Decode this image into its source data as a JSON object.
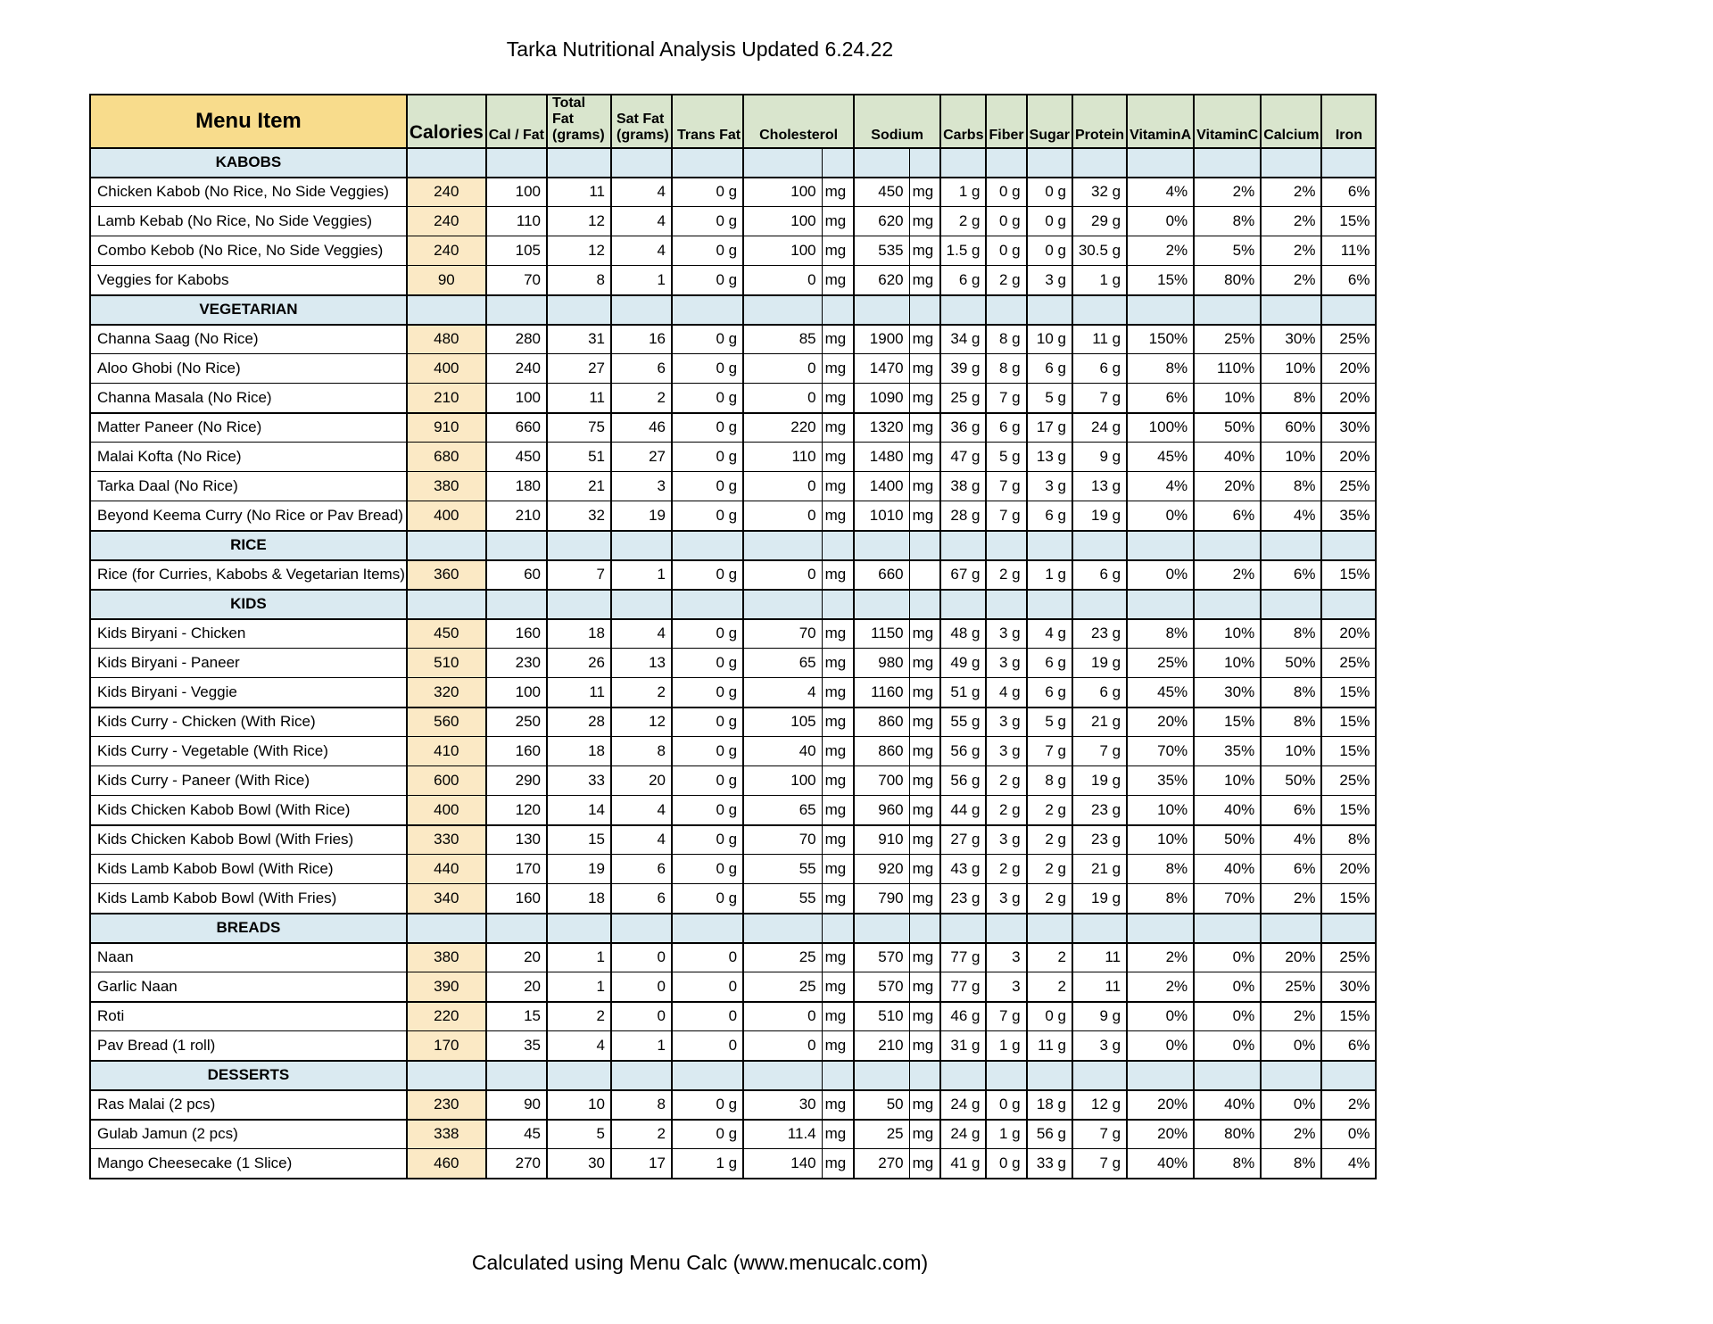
{
  "title": "Tarka Nutritional Analysis Updated 6.24.22",
  "footer": "Calculated using Menu Calc (www.menucalc.com)",
  "colors": {
    "menu_header_yellow": "#f8dc8c",
    "column_header_green": "#d9e5cd",
    "section_row_blue": "#daeaf1",
    "calories_column_tan": "#fbe9c5",
    "grid_border": "#000000"
  },
  "table": {
    "headers": {
      "menu_item": "Menu Item",
      "calories": "Calories",
      "cal_fat": "Cal / Fat",
      "total_fat": "Total Fat\n(grams)",
      "sat_fat": "Sat Fat\n(grams)",
      "trans_fat": "Trans Fat",
      "cholesterol": "Cholesterol",
      "sodium": "Sodium",
      "carbs": "Carbs",
      "fiber": "Fiber",
      "sugar": "Sugar",
      "protein": "Protein",
      "vitamin_a": "VitaminA",
      "vitamin_c": "VitaminC",
      "calcium": "Calcium",
      "iron": "Iron"
    },
    "sections": [
      {
        "name": "KABOBS",
        "rows": [
          {
            "item": "Chicken Kabob (No Rice, No Side Veggies)",
            "calories": "240",
            "cal_fat": "100",
            "total_fat": "11",
            "sat_fat": "4",
            "trans_fat": "0 g",
            "chol": "100",
            "chol_unit": "mg",
            "sodium": "450",
            "sodium_unit": "mg",
            "carbs": "1 g",
            "fiber": "0 g",
            "sugar": "0 g",
            "protein": "32 g",
            "vit_a": "4%",
            "vit_c": "2%",
            "calcium": "2%",
            "iron": "6%"
          },
          {
            "item": "Lamb Kebab  (No Rice, No Side Veggies)",
            "calories": "240",
            "cal_fat": "110",
            "total_fat": "12",
            "sat_fat": "4",
            "trans_fat": "0 g",
            "chol": "100",
            "chol_unit": "mg",
            "sodium": "620",
            "sodium_unit": "mg",
            "carbs": "2 g",
            "fiber": "0 g",
            "sugar": "0 g",
            "protein": "29 g",
            "vit_a": "0%",
            "vit_c": "8%",
            "calcium": "2%",
            "iron": "15%"
          },
          {
            "item": "Combo Kebob (No Rice, No Side Veggies)",
            "calories": "240",
            "cal_fat": "105",
            "total_fat": "12",
            "sat_fat": "4",
            "trans_fat": "0 g",
            "chol": "100",
            "chol_unit": "mg",
            "sodium": "535",
            "sodium_unit": "mg",
            "carbs": "1.5 g",
            "fiber": "0 g",
            "sugar": "0 g",
            "protein": "30.5 g",
            "vit_a": "2%",
            "vit_c": "5%",
            "calcium": "2%",
            "iron": "11%"
          },
          {
            "item": "Veggies for Kabobs",
            "calories": "90",
            "cal_fat": "70",
            "total_fat": "8",
            "sat_fat": "1",
            "trans_fat": "0 g",
            "chol": "0",
            "chol_unit": "mg",
            "sodium": "620",
            "sodium_unit": "mg",
            "carbs": "6 g",
            "fiber": "2 g",
            "sugar": "3 g",
            "protein": "1 g",
            "vit_a": "15%",
            "vit_c": "80%",
            "calcium": "2%",
            "iron": "6%"
          }
        ]
      },
      {
        "name": "VEGETARIAN",
        "rows": [
          {
            "item": "Channa Saag (No Rice)",
            "calories": "480",
            "cal_fat": "280",
            "total_fat": "31",
            "sat_fat": "16",
            "trans_fat": "0 g",
            "chol": "85",
            "chol_unit": "mg",
            "sodium": "1900",
            "sodium_unit": "mg",
            "carbs": "34 g",
            "fiber": "8 g",
            "sugar": "10 g",
            "protein": "11 g",
            "vit_a": "150%",
            "vit_c": "25%",
            "calcium": "30%",
            "iron": "25%"
          },
          {
            "item": "Aloo Ghobi (No Rice)",
            "calories": "400",
            "cal_fat": "240",
            "total_fat": "27",
            "sat_fat": "6",
            "trans_fat": "0 g",
            "chol": "0",
            "chol_unit": "mg",
            "sodium": "1470",
            "sodium_unit": "mg",
            "carbs": "39 g",
            "fiber": "8 g",
            "sugar": "6 g",
            "protein": "6 g",
            "vit_a": "8%",
            "vit_c": "110%",
            "calcium": "10%",
            "iron": "20%"
          },
          {
            "item": "Channa Masala (No Rice)",
            "calories": "210",
            "cal_fat": "100",
            "total_fat": "11",
            "sat_fat": "2",
            "trans_fat": "0 g",
            "chol": "0",
            "chol_unit": "mg",
            "sodium": "1090",
            "sodium_unit": "mg",
            "carbs": "25 g",
            "fiber": "7 g",
            "sugar": "5 g",
            "protein": "7 g",
            "vit_a": "6%",
            "vit_c": "10%",
            "calcium": "8%",
            "iron": "20%"
          },
          {
            "item": "Matter Paneer (No Rice)",
            "thick_top": true,
            "calories": "910",
            "cal_fat": "660",
            "total_fat": "75",
            "sat_fat": "46",
            "trans_fat": "0 g",
            "chol": "220",
            "chol_unit": "mg",
            "sodium": "1320",
            "sodium_unit": "mg",
            "carbs": "36 g",
            "fiber": "6 g",
            "sugar": "17 g",
            "protein": "24 g",
            "vit_a": "100%",
            "vit_c": "50%",
            "calcium": "60%",
            "iron": "30%"
          },
          {
            "item": "Malai Kofta (No Rice)",
            "calories": "680",
            "cal_fat": "450",
            "total_fat": "51",
            "sat_fat": "27",
            "trans_fat": "0 g",
            "chol": "110",
            "chol_unit": "mg",
            "sodium": "1480",
            "sodium_unit": "mg",
            "carbs": "47 g",
            "fiber": "5 g",
            "sugar": "13 g",
            "protein": "9 g",
            "vit_a": "45%",
            "vit_c": "40%",
            "calcium": "10%",
            "iron": "20%"
          },
          {
            "item": "Tarka Daal (No Rice)",
            "calories": "380",
            "cal_fat": "180",
            "total_fat": "21",
            "sat_fat": "3",
            "trans_fat": "0 g",
            "chol": "0",
            "chol_unit": "mg",
            "sodium": "1400",
            "sodium_unit": "mg",
            "carbs": "38 g",
            "fiber": "7 g",
            "sugar": "3 g",
            "protein": "13 g",
            "vit_a": "4%",
            "vit_c": "20%",
            "calcium": "8%",
            "iron": "25%"
          },
          {
            "item": "Beyond Keema Curry (No Rice or Pav Bread)",
            "calories": "400",
            "cal_fat": "210",
            "total_fat": "32",
            "sat_fat": "19",
            "trans_fat": "0 g",
            "chol": "0",
            "chol_unit": "mg",
            "sodium": "1010",
            "sodium_unit": "mg",
            "carbs": "28 g",
            "fiber": "7 g",
            "sugar": "6 g",
            "protein": "19 g",
            "vit_a": "0%",
            "vit_c": "6%",
            "calcium": "4%",
            "iron": "35%"
          }
        ]
      },
      {
        "name": "RICE",
        "rows": [
          {
            "item": "Rice (for Curries, Kabobs & Vegetarian Items)",
            "calories": "360",
            "cal_fat": "60",
            "total_fat": "7",
            "sat_fat": "1",
            "trans_fat": "0 g",
            "chol": "0",
            "chol_unit": "mg",
            "sodium": "660",
            "sodium_unit": "",
            "carbs": "67 g",
            "fiber": "2 g",
            "sugar": "1 g",
            "protein": "6 g",
            "vit_a": "0%",
            "vit_c": "2%",
            "calcium": "6%",
            "iron": "15%"
          }
        ]
      },
      {
        "name": "KIDS",
        "rows": [
          {
            "item": "Kids Biryani - Chicken",
            "calories": "450",
            "cal_fat": "160",
            "total_fat": "18",
            "sat_fat": "4",
            "trans_fat": "0 g",
            "chol": "70",
            "chol_unit": "mg",
            "sodium": "1150",
            "sodium_unit": "mg",
            "carbs": "48 g",
            "fiber": "3 g",
            "sugar": "4 g",
            "protein": "23 g",
            "vit_a": "8%",
            "vit_c": "10%",
            "calcium": "8%",
            "iron": "20%"
          },
          {
            "item": "Kids Biryani - Paneer",
            "calories": "510",
            "cal_fat": "230",
            "total_fat": "26",
            "sat_fat": "13",
            "trans_fat": "0 g",
            "chol": "65",
            "chol_unit": "mg",
            "sodium": "980",
            "sodium_unit": "mg",
            "carbs": "49 g",
            "fiber": "3 g",
            "sugar": "6 g",
            "protein": "19 g",
            "vit_a": "25%",
            "vit_c": "10%",
            "calcium": "50%",
            "iron": "25%"
          },
          {
            "item": "Kids Biryani - Veggie",
            "calories": "320",
            "cal_fat": "100",
            "total_fat": "11",
            "sat_fat": "2",
            "trans_fat": "0 g",
            "chol": "4",
            "chol_unit": "mg",
            "sodium": "1160",
            "sodium_unit": "mg",
            "carbs": "51 g",
            "fiber": "4 g",
            "sugar": "6 g",
            "protein": "6 g",
            "vit_a": "45%",
            "vit_c": "30%",
            "calcium": "8%",
            "iron": "15%"
          },
          {
            "item": "Kids Curry - Chicken (With Rice)",
            "thick_top": true,
            "calories": "560",
            "cal_fat": "250",
            "total_fat": "28",
            "sat_fat": "12",
            "trans_fat": "0 g",
            "chol": "105",
            "chol_unit": "mg",
            "sodium": "860",
            "sodium_unit": "mg",
            "carbs": "55 g",
            "fiber": "3 g",
            "sugar": "5 g",
            "protein": "21 g",
            "vit_a": "20%",
            "vit_c": "15%",
            "calcium": "8%",
            "iron": "15%"
          },
          {
            "item": "Kids Curry - Vegetable (With Rice)",
            "calories": "410",
            "cal_fat": "160",
            "total_fat": "18",
            "sat_fat": "8",
            "trans_fat": "0 g",
            "chol": "40",
            "chol_unit": "mg",
            "sodium": "860",
            "sodium_unit": "mg",
            "carbs": "56 g",
            "fiber": "3 g",
            "sugar": "7 g",
            "protein": "7 g",
            "vit_a": "70%",
            "vit_c": "35%",
            "calcium": "10%",
            "iron": "15%"
          },
          {
            "item": "Kids Curry - Paneer (With Rice)",
            "calories": "600",
            "cal_fat": "290",
            "total_fat": "33",
            "sat_fat": "20",
            "trans_fat": "0 g",
            "chol": "100",
            "chol_unit": "mg",
            "sodium": "700",
            "sodium_unit": "mg",
            "carbs": "56 g",
            "fiber": "2 g",
            "sugar": "8 g",
            "protein": "19 g",
            "vit_a": "35%",
            "vit_c": "10%",
            "calcium": "50%",
            "iron": "25%"
          },
          {
            "item": "Kids Chicken Kabob Bowl (With Rice)",
            "calories": "400",
            "cal_fat": "120",
            "total_fat": "14",
            "sat_fat": "4",
            "trans_fat": "0 g",
            "chol": "65",
            "chol_unit": "mg",
            "sodium": "960",
            "sodium_unit": "mg",
            "carbs": "44 g",
            "fiber": "2 g",
            "sugar": "2 g",
            "protein": "23 g",
            "vit_a": "10%",
            "vit_c": "40%",
            "calcium": "6%",
            "iron": "15%"
          },
          {
            "item": "Kids Chicken Kabob Bowl (With Fries)",
            "thick_top": true,
            "calories": "330",
            "cal_fat": "130",
            "total_fat": "15",
            "sat_fat": "4",
            "trans_fat": "0 g",
            "chol": "70",
            "chol_unit": "mg",
            "sodium": "910",
            "sodium_unit": "mg",
            "carbs": "27 g",
            "fiber": "3 g",
            "sugar": "2 g",
            "protein": "23 g",
            "vit_a": "10%",
            "vit_c": "50%",
            "calcium": "4%",
            "iron": "8%"
          },
          {
            "item": "Kids Lamb Kabob Bowl (With Rice)",
            "calories": "440",
            "cal_fat": "170",
            "total_fat": "19",
            "sat_fat": "6",
            "trans_fat": "0 g",
            "chol": "55",
            "chol_unit": "mg",
            "sodium": "920",
            "sodium_unit": "mg",
            "carbs": "43 g",
            "fiber": "2 g",
            "sugar": "2 g",
            "protein": "21 g",
            "vit_a": "8%",
            "vit_c": "40%",
            "calcium": "6%",
            "iron": "20%"
          },
          {
            "item": "Kids Lamb Kabob Bowl (With Fries)",
            "calories": "340",
            "cal_fat": "160",
            "total_fat": "18",
            "sat_fat": "6",
            "trans_fat": "0 g",
            "chol": "55",
            "chol_unit": "mg",
            "sodium": "790",
            "sodium_unit": "mg",
            "carbs": "23 g",
            "fiber": "3 g",
            "sugar": "2 g",
            "protein": "19 g",
            "vit_a": "8%",
            "vit_c": "70%",
            "calcium": "2%",
            "iron": "15%"
          }
        ]
      },
      {
        "name": "BREADS",
        "rows": [
          {
            "item": "Naan",
            "calories": "380",
            "cal_fat": "20",
            "total_fat": "1",
            "sat_fat": "0",
            "trans_fat": "0",
            "chol": "25",
            "chol_unit": "mg",
            "sodium": "570",
            "sodium_unit": "mg",
            "carbs": "77 g",
            "fiber": "3",
            "sugar": "2",
            "protein": "11",
            "vit_a": "2%",
            "vit_c": "0%",
            "calcium": "20%",
            "iron": "25%"
          },
          {
            "item": "Garlic Naan",
            "calories": "390",
            "cal_fat": "20",
            "total_fat": "1",
            "sat_fat": "0",
            "trans_fat": "0",
            "chol": "25",
            "chol_unit": "mg",
            "sodium": "570",
            "sodium_unit": "mg",
            "carbs": "77 g",
            "fiber": "3",
            "sugar": "2",
            "protein": "11",
            "vit_a": "2%",
            "vit_c": "0%",
            "calcium": "25%",
            "iron": "30%"
          },
          {
            "item": "Roti",
            "thick_top": true,
            "calories": "220",
            "cal_fat": "15",
            "total_fat": "2",
            "sat_fat": "0",
            "trans_fat": "0",
            "chol": "0",
            "chol_unit": "mg",
            "sodium": "510",
            "sodium_unit": "mg",
            "carbs": "46 g",
            "fiber": "7 g",
            "sugar": "0 g",
            "protein": "9 g",
            "vit_a": "0%",
            "vit_c": "0%",
            "calcium": "2%",
            "iron": "15%"
          },
          {
            "item": "Pav Bread (1 roll)",
            "calories": "170",
            "cal_fat": "35",
            "total_fat": "4",
            "sat_fat": "1",
            "trans_fat": "0",
            "chol": "0",
            "chol_unit": "mg",
            "sodium": "210",
            "sodium_unit": "mg",
            "carbs": "31 g",
            "fiber": "1 g",
            "sugar": "11 g",
            "protein": "3 g",
            "vit_a": "0%",
            "vit_c": "0%",
            "calcium": "0%",
            "iron": "6%"
          }
        ]
      },
      {
        "name": "DESSERTS",
        "rows": [
          {
            "item": "Ras Malai  (2 pcs)",
            "calories": "230",
            "cal_fat": "90",
            "total_fat": "10",
            "sat_fat": "8",
            "trans_fat": "0 g",
            "chol": "30",
            "chol_unit": "mg",
            "sodium": "50",
            "sodium_unit": "mg",
            "carbs": "24 g",
            "fiber": "0 g",
            "sugar": "18 g",
            "protein": "12 g",
            "vit_a": "20%",
            "vit_c": "40%",
            "calcium": "0%",
            "iron": "2%"
          },
          {
            "item": "Gulab Jamun  (2 pcs)",
            "thick_top": true,
            "calories": "338",
            "cal_fat": "45",
            "total_fat": "5",
            "sat_fat": "2",
            "trans_fat": "0 g",
            "chol": "11.4",
            "chol_unit": "mg",
            "sodium": "25",
            "sodium_unit": "mg",
            "carbs": "24 g",
            "fiber": "1 g",
            "sugar": "56 g",
            "protein": "7 g",
            "vit_a": "20%",
            "vit_c": "80%",
            "calcium": "2%",
            "iron": "0%"
          },
          {
            "item": "Mango Cheesecake (1 Slice)",
            "calories": "460",
            "cal_fat": "270",
            "total_fat": "30",
            "sat_fat": "17",
            "trans_fat": "1 g",
            "chol": "140",
            "chol_unit": "mg",
            "sodium": "270",
            "sodium_unit": "mg",
            "carbs": "41 g",
            "fiber": "0 g",
            "sugar": "33 g",
            "protein": "7 g",
            "vit_a": "40%",
            "vit_c": "8%",
            "calcium": "8%",
            "iron": "4%"
          }
        ]
      }
    ]
  }
}
